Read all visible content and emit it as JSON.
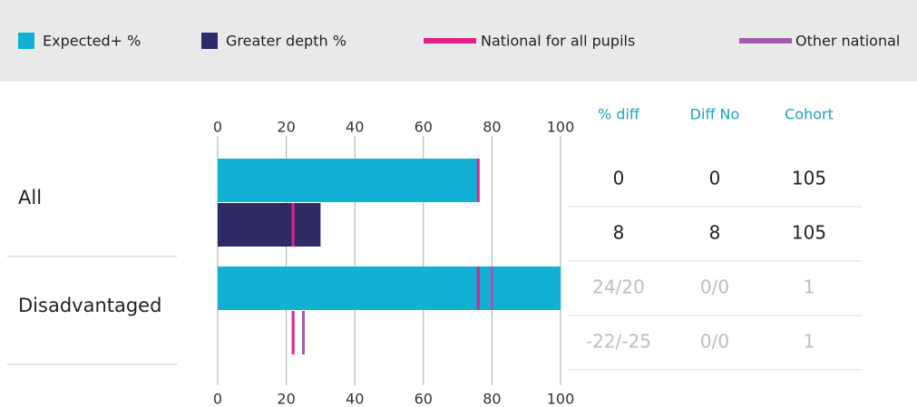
{
  "chart_data": {
    "type": "bar",
    "orientation": "horizontal",
    "categories": [
      "All",
      "Disadvantaged"
    ],
    "series": [
      {
        "name": "Expected+ %",
        "color": "#12b0d4",
        "values": [
          76,
          100
        ]
      },
      {
        "name": "Greater depth %",
        "color": "#2d2a66",
        "values": [
          30,
          null
        ]
      }
    ],
    "markers": [
      {
        "name": "National for all pupils",
        "color": "#e0218a",
        "values": [
          [
            76,
            22
          ],
          [
            76,
            22
          ]
        ]
      },
      {
        "name": "Other national",
        "color": "#a05bb0",
        "values": [
          [
            null,
            null
          ],
          [
            80,
            25
          ]
        ]
      }
    ],
    "xlim": [
      0,
      100
    ],
    "xticks": [
      0,
      20,
      40,
      60,
      80,
      100
    ],
    "grid": true,
    "table": {
      "columns": [
        "% diff",
        "Diff No",
        "Cohort"
      ],
      "rows": [
        [
          "0",
          "0",
          "105"
        ],
        [
          "8",
          "8",
          "105"
        ],
        [
          "24/20",
          "0/0",
          "1"
        ],
        [
          "-22/-25",
          "0/0",
          "1"
        ]
      ]
    }
  }
}
